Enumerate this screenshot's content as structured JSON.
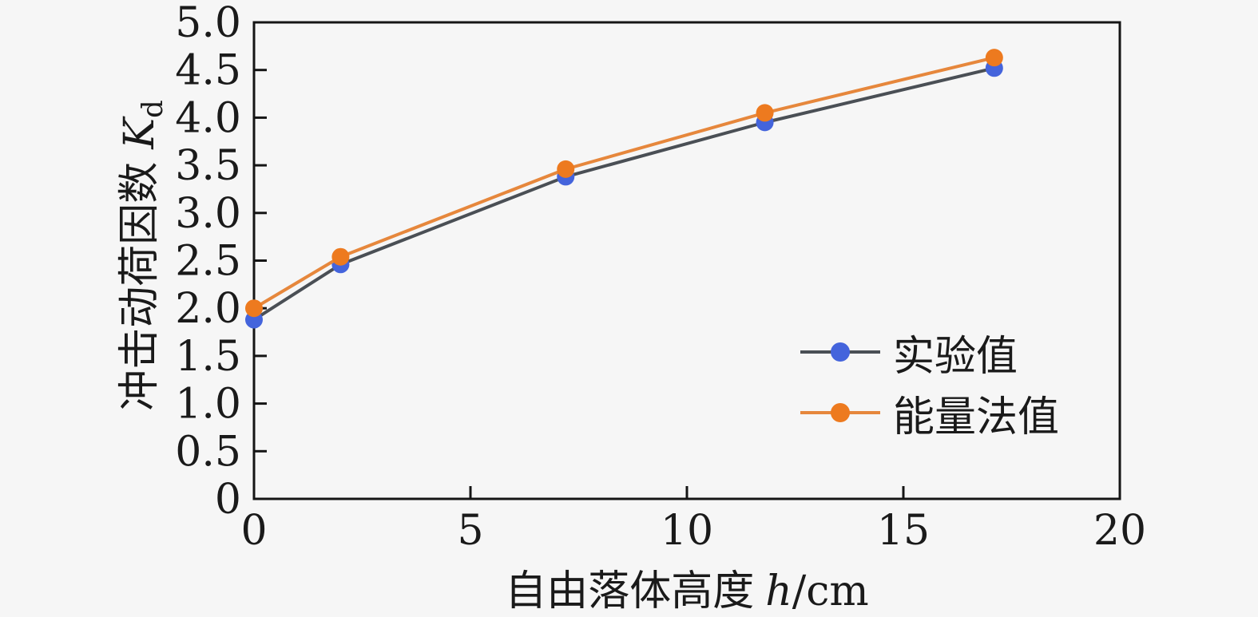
{
  "chart_data": {
    "type": "line",
    "x": [
      0,
      2,
      7.2,
      11.8,
      17.1
    ],
    "series": [
      {
        "name": "实验值",
        "values": [
          1.88,
          2.46,
          3.38,
          3.95,
          4.52
        ],
        "line_color": "#4a4f55",
        "marker_color": "#4464dc"
      },
      {
        "name": "能量法值",
        "values": [
          2.0,
          2.54,
          3.46,
          4.05,
          4.63
        ],
        "line_color": "#e6873c",
        "marker_color": "#ed7a1f"
      }
    ],
    "xlabel_cn": "自由落体高度",
    "xlabel_var": "h",
    "xlabel_unit": "/cm",
    "ylabel_cn": "冲击动荷因数",
    "ylabel_var": "K",
    "ylabel_sub": "d",
    "xlim": [
      0,
      20
    ],
    "ylim": [
      0,
      5
    ],
    "xticks": [
      0,
      5,
      10,
      15,
      20
    ],
    "xtick_labels": [
      "0",
      "5",
      "10",
      "15",
      "20"
    ],
    "yticks": [
      0,
      0.5,
      1,
      1.5,
      2,
      2.5,
      3,
      3.5,
      4,
      4.5,
      5
    ],
    "ytick_labels": [
      "0",
      "0.5",
      "1.0",
      "1.5",
      "2.0",
      "2.5",
      "3.0",
      "3.5",
      "4.0",
      "4.5",
      "5.0"
    ],
    "grid": false,
    "legend_position": "right-center",
    "background": "#f6f6f6",
    "frame_color": "#151515",
    "tick_label_color": "#1a1a1a"
  }
}
